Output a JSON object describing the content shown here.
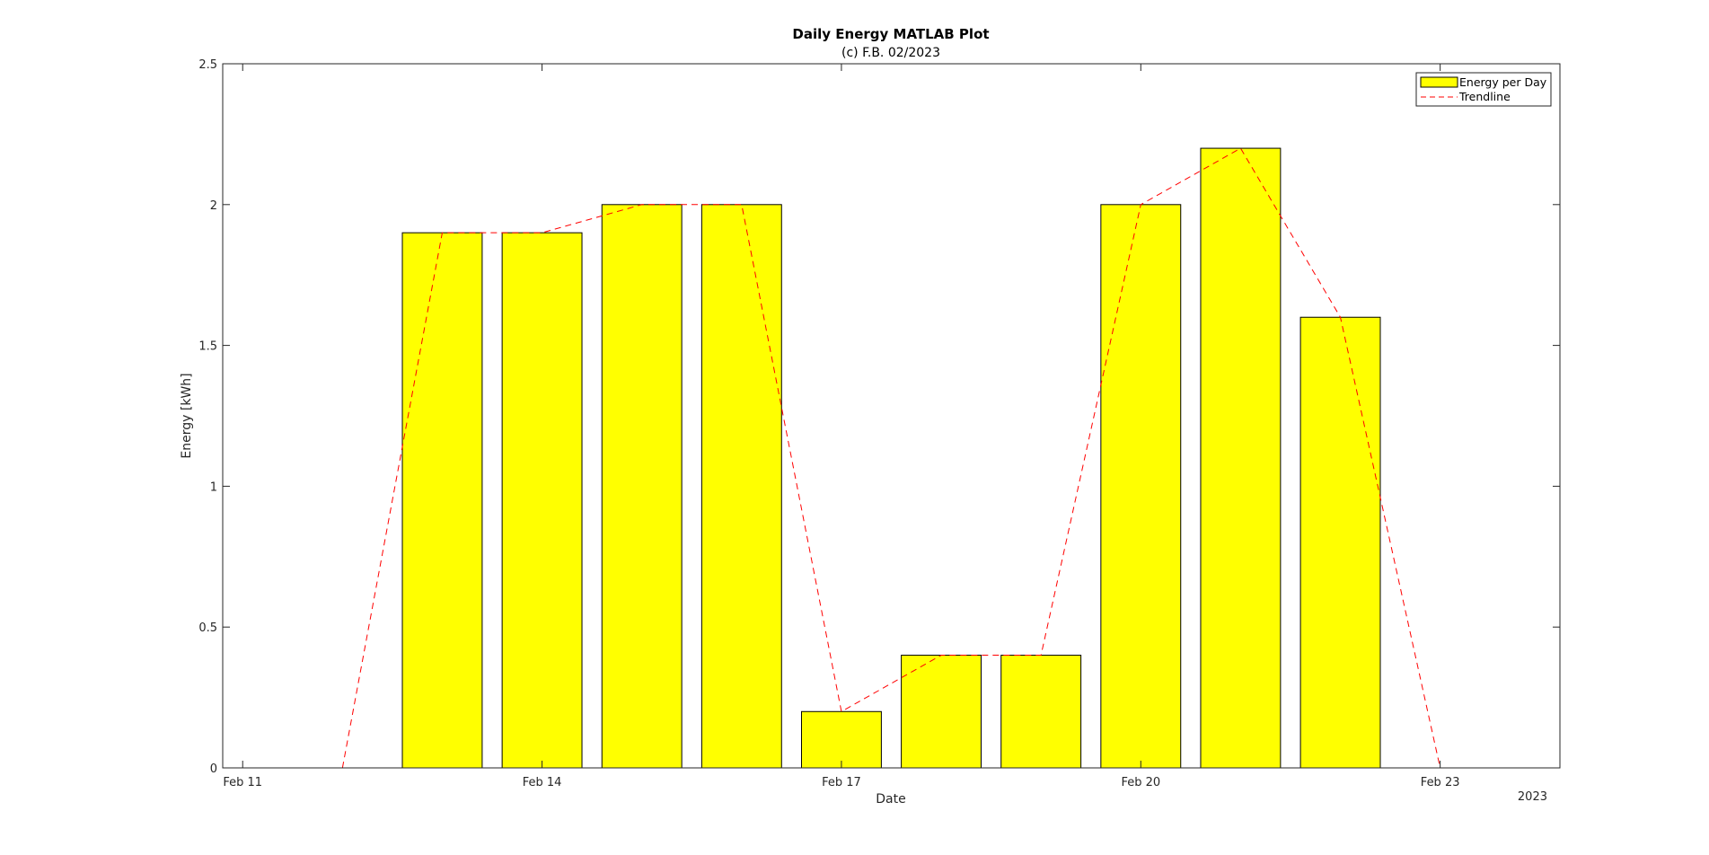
{
  "chart_data": {
    "type": "bar",
    "title": "Daily Energy MATLAB Plot",
    "subtitle": "(c) F.B. 02/2023",
    "xlabel": "Date",
    "ylabel": "Energy [kWh]",
    "year_label": "2023",
    "x_ticks": [
      "Feb 11",
      "Feb 14",
      "Feb 17",
      "Feb 20",
      "Feb 23"
    ],
    "xlim": [
      "Feb 10.8",
      "Feb 24.2"
    ],
    "ylim": [
      0,
      2.5
    ],
    "y_ticks": [
      "0",
      "0.5",
      "1",
      "1.5",
      "2",
      "2.5"
    ],
    "grid": false,
    "legend_position": "top-right",
    "colors": {
      "bar_fill": "#ffff00",
      "bar_edge": "#000000",
      "trend": "#ff0000"
    },
    "series": [
      {
        "name": "Energy per Day",
        "type": "bar",
        "x": [
          "Feb 13",
          "Feb 14",
          "Feb 15",
          "Feb 16",
          "Feb 17",
          "Feb 18",
          "Feb 19",
          "Feb 20",
          "Feb 21",
          "Feb 22"
        ],
        "values": [
          1.9,
          1.9,
          2.0,
          2.0,
          0.2,
          0.4,
          0.4,
          2.0,
          2.2,
          1.6
        ]
      },
      {
        "name": "Trendline",
        "type": "line",
        "style": "dashed",
        "x": [
          "Feb 12",
          "Feb 13",
          "Feb 14",
          "Feb 15",
          "Feb 16",
          "Feb 17",
          "Feb 18",
          "Feb 19",
          "Feb 20",
          "Feb 21",
          "Feb 22",
          "Feb 23"
        ],
        "values": [
          0,
          1.9,
          1.9,
          2.0,
          2.0,
          0.2,
          0.4,
          0.4,
          2.0,
          2.2,
          1.6,
          0
        ]
      }
    ]
  }
}
